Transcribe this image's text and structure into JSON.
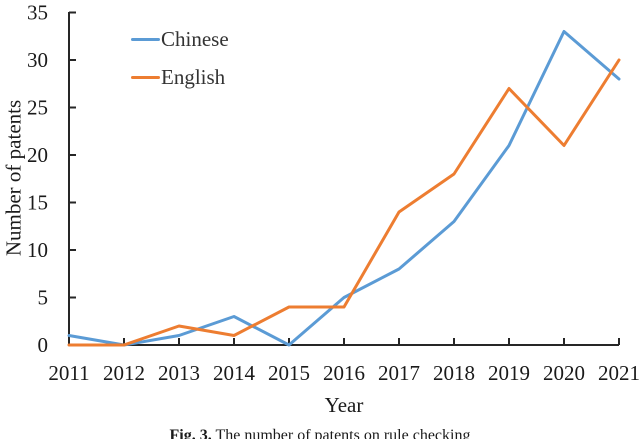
{
  "figure": {
    "caption_prefix": "Fig. 3.",
    "caption_text": " The number of patents on rule checking"
  },
  "chart_data": {
    "type": "line",
    "title": "",
    "xlabel": "Year",
    "ylabel": "Number of patents",
    "categories": [
      "2011",
      "2012",
      "2013",
      "2014",
      "2015",
      "2016",
      "2017",
      "2018",
      "2019",
      "2020",
      "2021"
    ],
    "series": [
      {
        "name": "Chinese",
        "color": "#5B9BD5",
        "values": [
          1,
          0,
          1,
          3,
          0,
          5,
          8,
          13,
          21,
          33,
          28
        ]
      },
      {
        "name": "English",
        "color": "#ED7D31",
        "values": [
          0,
          0,
          2,
          1,
          4,
          4,
          14,
          18,
          27,
          21,
          30
        ]
      }
    ],
    "ylim": [
      0,
      35
    ],
    "y_ticks": [
      0,
      5,
      10,
      15,
      20,
      25,
      30,
      35
    ],
    "grid": false,
    "legend_position": "inside-top-left",
    "axis_color": "#262626",
    "text_color": "#1a1a1a"
  }
}
